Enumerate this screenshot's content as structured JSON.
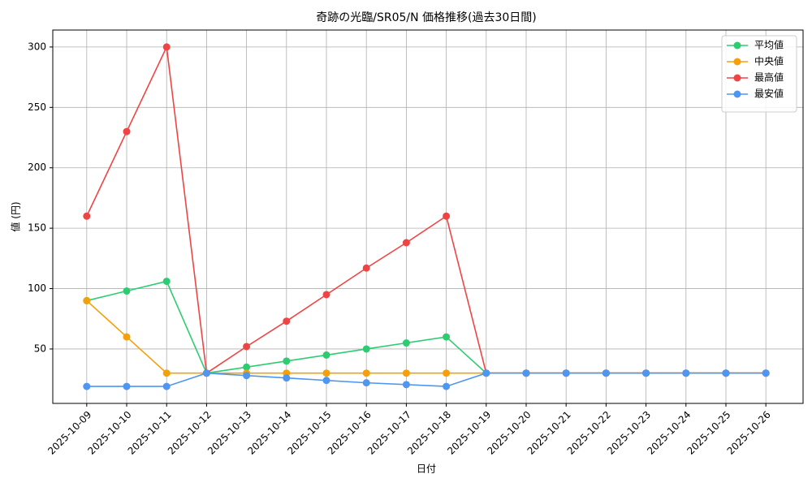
{
  "chart_data": {
    "type": "line",
    "title": "奇跡の光臨/SR05/N 価格推移(過去30日間)",
    "xlabel": "日付",
    "ylabel": "値 (円)",
    "categories": [
      "2025-10-09",
      "2025-10-10",
      "2025-10-11",
      "2025-10-12",
      "2025-10-13",
      "2025-10-14",
      "2025-10-15",
      "2025-10-16",
      "2025-10-17",
      "2025-10-18",
      "2025-10-19",
      "2025-10-20",
      "2025-10-21",
      "2025-10-22",
      "2025-10-23",
      "2025-10-24",
      "2025-10-25",
      "2025-10-26"
    ],
    "series": [
      {
        "name": "平均値",
        "color": "#2ecc71",
        "values": [
          90,
          98,
          106,
          30,
          35,
          40,
          45,
          50,
          55,
          60,
          30,
          30,
          30,
          30,
          30,
          30,
          30,
          30
        ]
      },
      {
        "name": "中央値",
        "color": "#f5a00b",
        "values": [
          90,
          60,
          30,
          30,
          30,
          30,
          30,
          30,
          30,
          30,
          30,
          30,
          30,
          30,
          30,
          30,
          30,
          30
        ]
      },
      {
        "name": "最高値",
        "color": "#ef4444",
        "values": [
          160,
          230,
          300,
          30,
          52,
          73,
          95,
          117,
          138,
          160,
          30,
          30,
          30,
          30,
          30,
          30,
          30,
          30
        ]
      },
      {
        "name": "最安値",
        "color": "#4f96f0",
        "values": [
          19,
          19,
          19,
          30,
          28,
          26,
          24,
          22,
          20.5,
          19,
          30,
          30,
          30,
          30,
          30,
          30,
          30,
          30
        ]
      }
    ],
    "ylim": [
      4.95,
      314.05
    ],
    "yticks": [
      50,
      100,
      150,
      200,
      250,
      300
    ],
    "grid": true,
    "legend": "upper right"
  }
}
